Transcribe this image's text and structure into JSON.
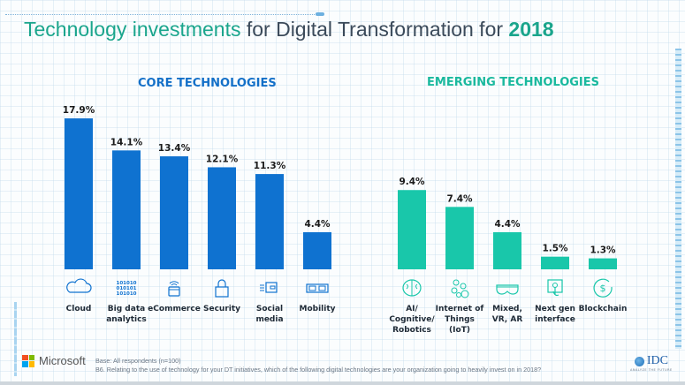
{
  "header": {
    "title_highlight": "Technology investments",
    "title_mid": "for Digital Transformation for",
    "title_year": "2018"
  },
  "colors": {
    "core": "#0f72d0",
    "emerging": "#19c7aa",
    "title_accent": "#1aa58c"
  },
  "chart_data": [
    {
      "type": "bar",
      "title": "CORE TECHNOLOGIES",
      "categories": [
        "Cloud",
        "Big data analytics",
        "eCommerce",
        "Security",
        "Social media",
        "Mobility"
      ],
      "category_lines": [
        [
          "Cloud"
        ],
        [
          "Big data",
          "analytics"
        ],
        [
          "eCommerce"
        ],
        [
          "Security"
        ],
        [
          "Social",
          "media"
        ],
        [
          "Mobility"
        ]
      ],
      "icons": [
        "cloud-icon",
        "binary-data-icon",
        "wallet-wifi-icon",
        "padlock-icon",
        "news-feed-icon",
        "mobile-devices-icon"
      ],
      "values": [
        17.9,
        14.1,
        13.4,
        12.1,
        11.3,
        4.4
      ],
      "labels": [
        "17.9%",
        "14.1%",
        "13.4%",
        "12.1%",
        "11.3%",
        "4.4%"
      ],
      "unit": "%",
      "xlabel": "",
      "ylabel": "",
      "ylim": [
        0,
        17.9
      ],
      "grid": false,
      "legend": "none"
    },
    {
      "type": "bar",
      "title": "EMERGING TECHNOLOGIES",
      "categories": [
        "AI/ Cognitive/ Robotics",
        "Internet of Things (IoT)",
        "Mixed, VR, AR",
        "Next gen interface",
        "Blockchain"
      ],
      "category_lines": [
        [
          "AI/",
          "Cognitive/",
          "Robotics"
        ],
        [
          "Internet of",
          "Things",
          "(IoT)"
        ],
        [
          "Mixed,",
          "VR, AR"
        ],
        [
          "Next gen",
          "interface"
        ],
        [
          "Blockchain"
        ]
      ],
      "icons": [
        "brain-icon",
        "network-nodes-icon",
        "vr-headset-icon",
        "touch-screen-icon",
        "dollar-cycle-icon"
      ],
      "values": [
        9.4,
        7.4,
        4.4,
        1.5,
        1.3
      ],
      "labels": [
        "9.4%",
        "7.4%",
        "4.4%",
        "1.5%",
        "1.3%"
      ],
      "unit": "%",
      "xlabel": "",
      "ylabel": "",
      "ylim": [
        0,
        17.9
      ],
      "grid": false,
      "legend": "none"
    }
  ],
  "footer": {
    "brand": "Microsoft",
    "base_note": "Base: All respondents (n=100)",
    "question": "B6. Relating to the use of technology for your DT initiatives, which of the following digital technologies are your organization going to heavily invest on in 2018?",
    "partner_logo": "IDC",
    "partner_tagline": "ANALYZE THE FUTURE"
  }
}
